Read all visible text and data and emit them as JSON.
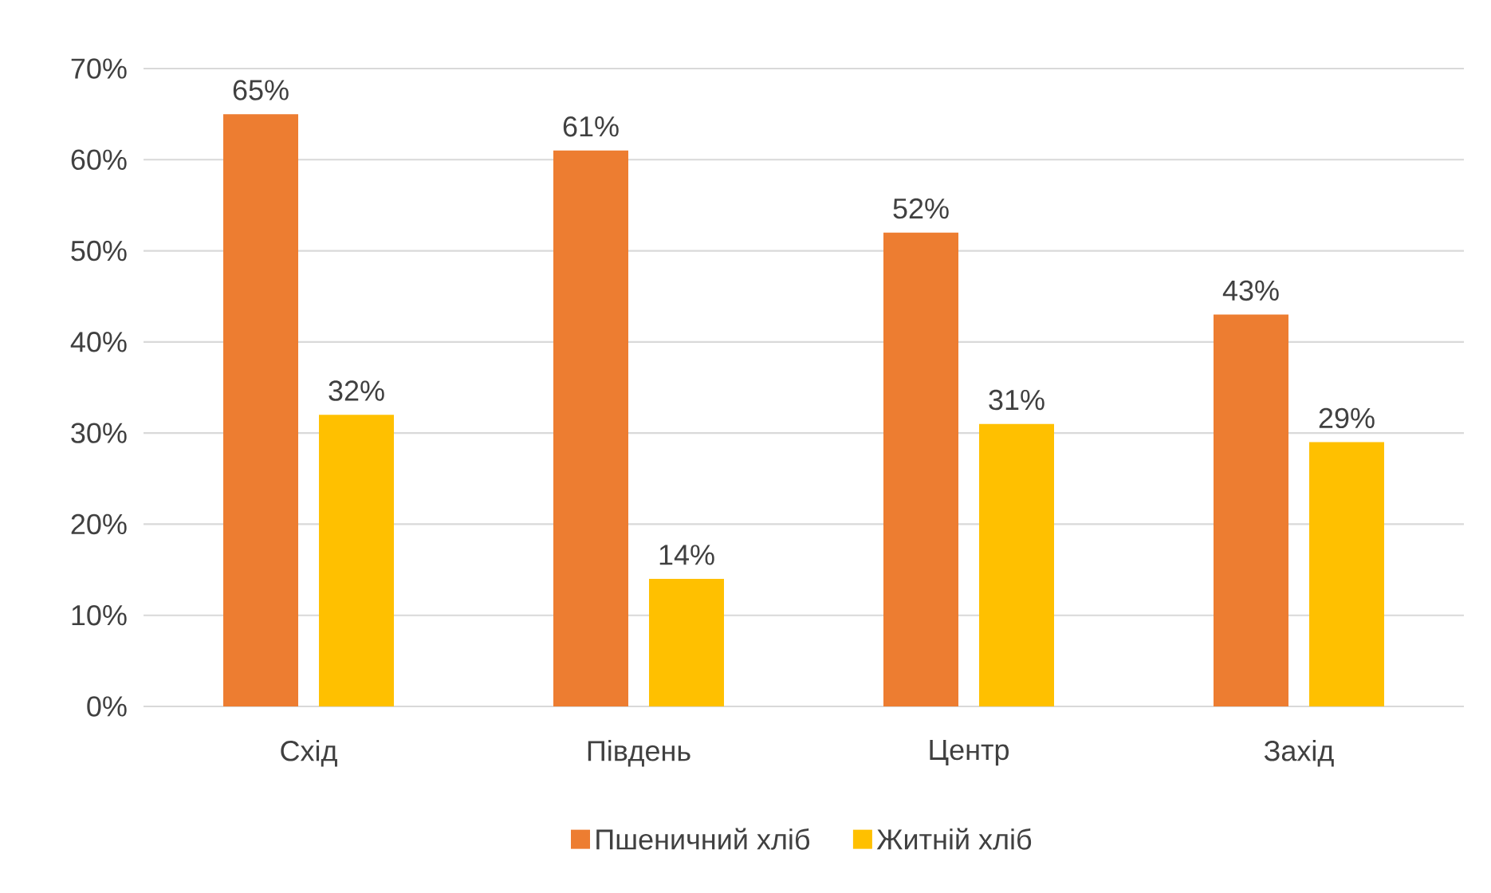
{
  "chart_data": {
    "type": "bar",
    "categories": [
      "Схід",
      "Південь",
      "Центр",
      "Захід"
    ],
    "series": [
      {
        "name": "Пшеничний хліб",
        "color": "#ed7d31",
        "values": [
          65,
          61,
          52,
          43
        ],
        "value_labels": [
          "65%",
          "61%",
          "52%",
          "43%"
        ]
      },
      {
        "name": "Житній хліб",
        "color": "#ffc000",
        "values": [
          32,
          14,
          31,
          29
        ],
        "value_labels": [
          "32%",
          "14%",
          "31%",
          "29%"
        ]
      }
    ],
    "ylim": [
      0,
      70
    ],
    "yticks": [
      {
        "value": 0,
        "label": "0%"
      },
      {
        "value": 10,
        "label": "10%"
      },
      {
        "value": 20,
        "label": "20%"
      },
      {
        "value": 30,
        "label": "30%"
      },
      {
        "value": 40,
        "label": "40%"
      },
      {
        "value": 50,
        "label": "50%"
      },
      {
        "value": 60,
        "label": "60%"
      },
      {
        "value": 70,
        "label": "70%"
      }
    ],
    "grid": "y",
    "legend": "bottom"
  }
}
